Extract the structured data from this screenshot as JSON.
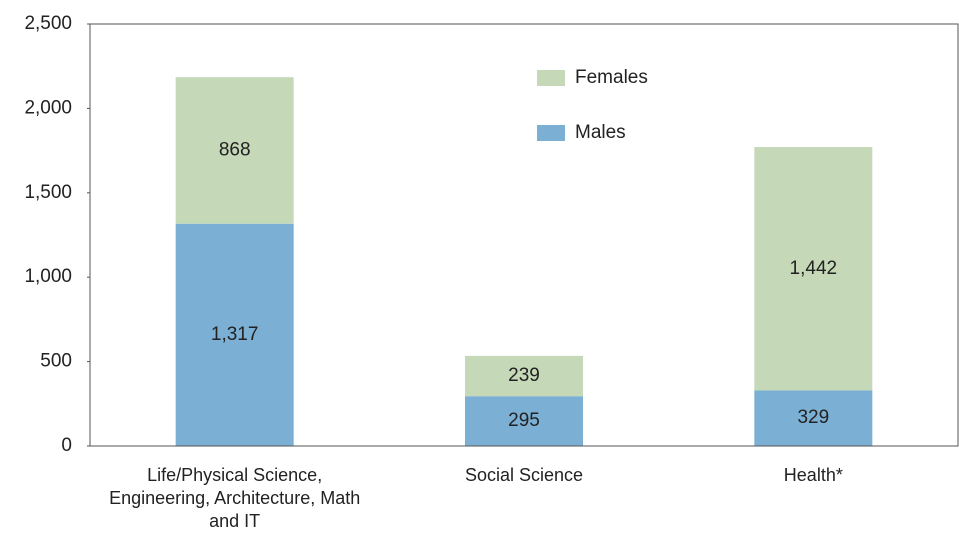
{
  "chart_data": {
    "type": "stacked_bar",
    "categories": [
      "Life/Physical Science, Engineering, Architecture, Math and IT",
      "Social Science",
      "Health*"
    ],
    "series": [
      {
        "name": "Males",
        "color": "#7bafd4",
        "values": [
          1317,
          295,
          329
        ],
        "value_labels": [
          "1,317",
          "295",
          "329"
        ]
      },
      {
        "name": "Females",
        "color": "#c5d9b8",
        "values": [
          868,
          239,
          1442
        ],
        "value_labels": [
          "868",
          "239",
          "1,442"
        ]
      }
    ],
    "ylim": [
      0,
      2500
    ],
    "yticks": [
      0,
      500,
      {
        "value": 1000,
        "label": "1,000"
      },
      {
        "value": 1500,
        "label": "1,500"
      },
      {
        "value": 2000,
        "label": "2,000"
      },
      {
        "value": 2500,
        "label": "2,500"
      }
    ],
    "legend": "top-center"
  }
}
